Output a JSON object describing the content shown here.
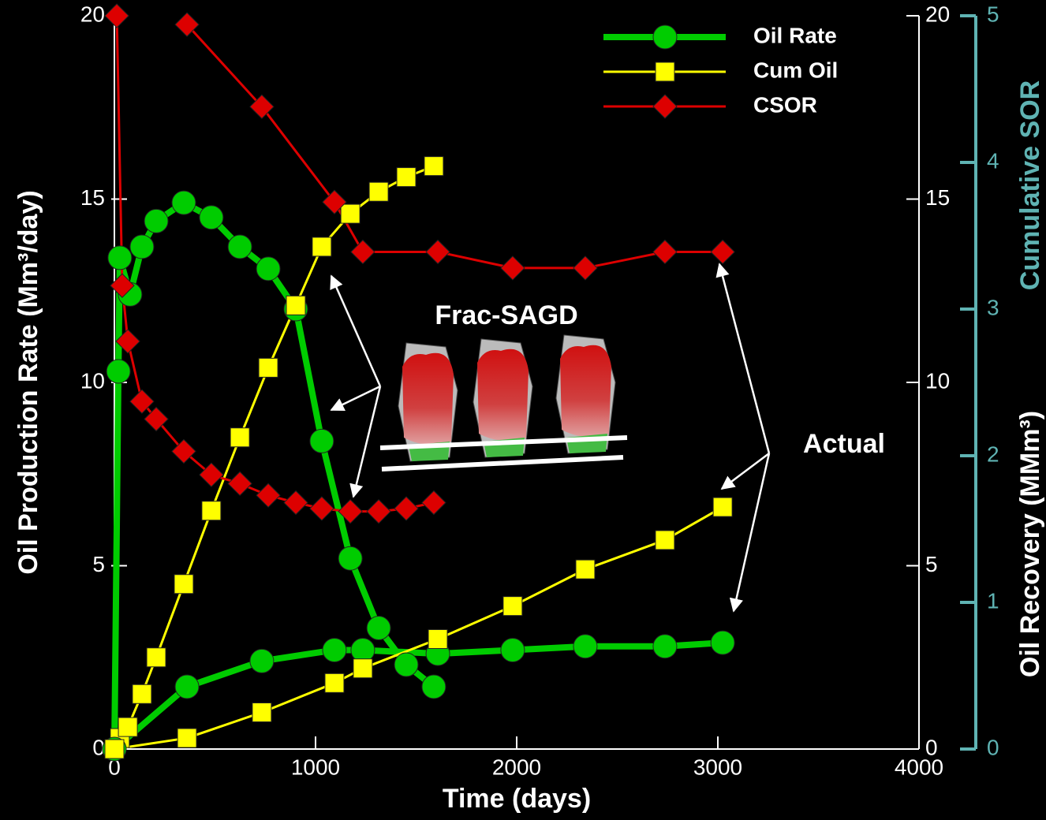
{
  "chart_data": {
    "type": "line",
    "xlabel": "Time (days)",
    "ylabel": "Oil Production Rate (Mm³/day)",
    "y2label": "Oil Recovery (MMm³)",
    "y3label": "Cumulative SOR",
    "xlim": [
      0,
      4000
    ],
    "xticks": [
      0,
      1000,
      2000,
      3000,
      4000
    ],
    "ylim": [
      0,
      20
    ],
    "yticks": [
      0,
      5,
      10,
      15,
      20
    ],
    "y2lim": [
      0,
      20
    ],
    "y2ticks": [
      0,
      5,
      10,
      15,
      20
    ],
    "y3lim": [
      0,
      5
    ],
    "y3ticks": [
      0,
      1,
      2,
      3,
      4,
      5
    ],
    "y3color": "#5fb3b3",
    "legend": "upper right",
    "annotations": [
      "Frac-SAGD",
      "Actual"
    ],
    "series": [
      {
        "name": "Oil Rate",
        "color": "#00cc00",
        "marker": "circle",
        "line_width": 8,
        "axis": "y",
        "x": [
          0,
          20,
          27,
          78,
          137,
          208,
          345,
          482,
          624,
          765,
          902,
          1031,
          1173,
          1314,
          1451,
          1588
        ],
        "values": [
          0,
          10.3,
          13.4,
          12.4,
          13.7,
          14.4,
          14.9,
          14.5,
          13.7,
          13.1,
          12.0,
          8.4,
          5.2,
          3.3,
          2.3,
          1.7
        ]
      },
      {
        "name": "Cum Oil",
        "color": "#ffff00",
        "marker": "square",
        "line_width": 3,
        "axis": "y2",
        "x": [
          0,
          27,
          67,
          137,
          208,
          345,
          482,
          624,
          765,
          902,
          1031,
          1173,
          1314,
          1451,
          1588
        ],
        "values": [
          0,
          0.3,
          0.6,
          1.5,
          2.5,
          4.5,
          6.5,
          8.5,
          10.4,
          12.1,
          13.7,
          14.6,
          15.2,
          15.6,
          15.9
        ]
      },
      {
        "name": "CSOR",
        "color": "#dd0000",
        "marker": "diamond",
        "line_width": 3,
        "axis": "y3",
        "x": [
          12,
          39,
          67,
          137,
          208,
          345,
          482,
          624,
          765,
          902,
          1031,
          1173,
          1314,
          1451,
          1588
        ],
        "values": [
          5,
          3.16,
          2.78,
          2.37,
          2.25,
          2.03,
          1.87,
          1.81,
          1.73,
          1.68,
          1.64,
          1.62,
          1.62,
          1.64,
          1.68
        ]
      },
      {
        "color": "#00cc00",
        "marker": "circle",
        "line_width": 8,
        "axis": "y",
        "x": [
          0,
          361,
          733,
          1094,
          1235,
          1608,
          1980,
          2341,
          2737,
          3024
        ],
        "values": [
          0,
          1.7,
          2.4,
          2.7,
          2.7,
          2.6,
          2.7,
          2.8,
          2.8,
          2.9
        ]
      },
      {
        "color": "#ffff00",
        "marker": "square",
        "line_width": 3,
        "axis": "y2",
        "x": [
          0,
          361,
          733,
          1094,
          1235,
          1608,
          1980,
          2341,
          2737,
          3024
        ],
        "values": [
          0,
          0.3,
          1.0,
          1.8,
          2.2,
          3.0,
          3.9,
          4.9,
          5.7,
          6.6
        ]
      },
      {
        "color": "#dd0000",
        "marker": "diamond",
        "line_width": 3,
        "axis": "y3",
        "x": [
          361,
          733,
          1094,
          1235,
          1608,
          1980,
          2341,
          2737,
          3024
        ],
        "values": [
          4.94,
          4.38,
          3.73,
          3.39,
          3.39,
          3.28,
          3.28,
          3.39,
          3.39
        ]
      }
    ]
  }
}
